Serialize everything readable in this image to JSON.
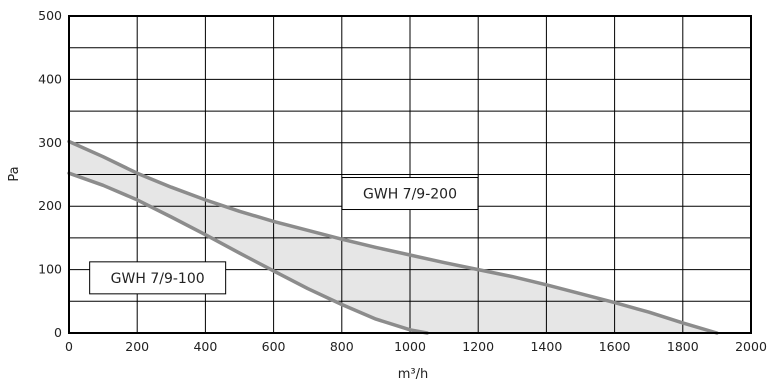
{
  "chart_data": {
    "type": "line",
    "title": "",
    "xlabel": "m³/h",
    "ylabel": "Pa",
    "xlim": [
      0,
      2000
    ],
    "ylim": [
      0,
      500
    ],
    "x_ticks": [
      0,
      200,
      400,
      600,
      800,
      1000,
      1200,
      1400,
      1600,
      1800,
      2000
    ],
    "y_ticks": [
      0,
      100,
      200,
      300,
      400,
      500
    ],
    "grid": true,
    "fill_between_series": true,
    "colors": {
      "curve": "#8c8c8c",
      "fill": "#e6e6e6",
      "grid": "#000000",
      "frame": "#000000"
    },
    "series": [
      {
        "name": "GWH 7/9-200",
        "x": [
          0,
          100,
          200,
          300,
          400,
          500,
          600,
          700,
          800,
          900,
          1000,
          1100,
          1200,
          1300,
          1400,
          1500,
          1600,
          1700,
          1800,
          1900
        ],
        "y": [
          302,
          278,
          252,
          230,
          210,
          192,
          176,
          162,
          148,
          135,
          123,
          111,
          100,
          89,
          76,
          62,
          48,
          33,
          16,
          0
        ]
      },
      {
        "name": "GWH 7/9-100",
        "x": [
          0,
          100,
          200,
          300,
          400,
          500,
          600,
          700,
          800,
          900,
          1000,
          1050
        ],
        "y": [
          252,
          233,
          210,
          183,
          155,
          126,
          98,
          70,
          45,
          22,
          5,
          0
        ]
      }
    ],
    "annotations": [
      {
        "text": "GWH 7/9-200",
        "x": 1000,
        "y": 220
      },
      {
        "text": "GWH 7/9-100",
        "x": 260,
        "y": 87
      }
    ]
  }
}
